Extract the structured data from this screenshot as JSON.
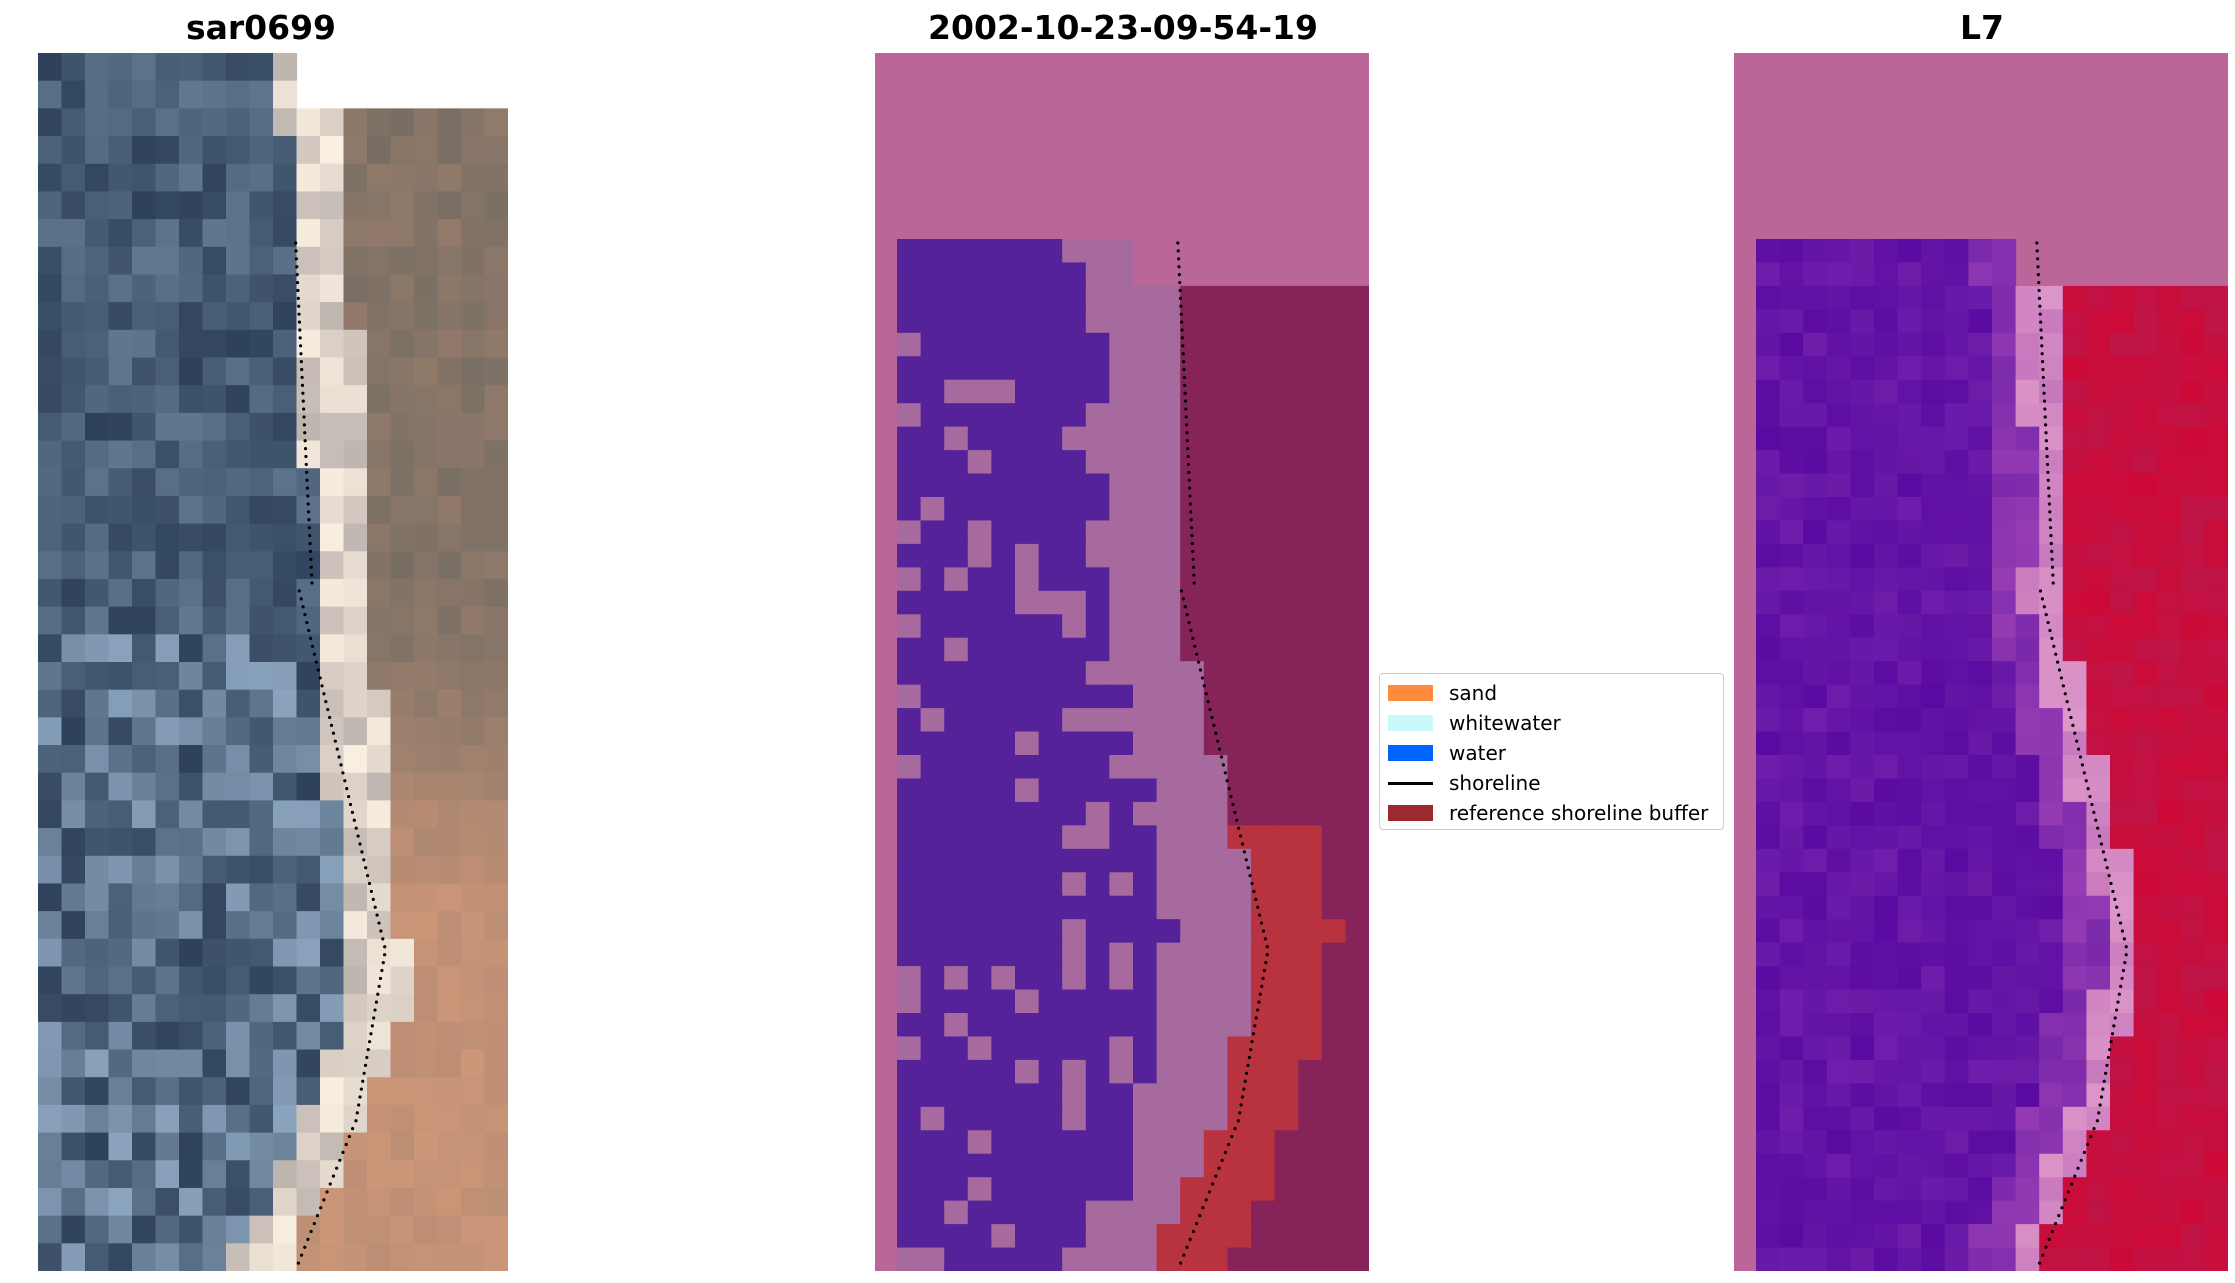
{
  "panels": [
    {
      "id": "rgb",
      "title": "sar0699"
    },
    {
      "id": "classified",
      "title": "2002-10-23-09-54-19"
    },
    {
      "id": "index",
      "title": "L7"
    }
  ],
  "legend": {
    "items": [
      {
        "label": "sand",
        "color": "#ff8c3c",
        "kind": "patch"
      },
      {
        "label": "whitewater",
        "color": "#c8fafa",
        "kind": "patch"
      },
      {
        "label": "water",
        "color": "#0064ff",
        "kind": "patch"
      },
      {
        "label": "shoreline",
        "color": "#000000",
        "kind": "line"
      },
      {
        "label": "reference shoreline buffer",
        "color": "#9b2a30",
        "kind": "patch"
      }
    ]
  },
  "colors": {
    "nodata": "#bb6698",
    "water_overlay": "#55229a",
    "land_overlay": "#a66a9e",
    "buffer_overlay": "#86245a",
    "sand_in_buffer": "#b8323f"
  }
}
